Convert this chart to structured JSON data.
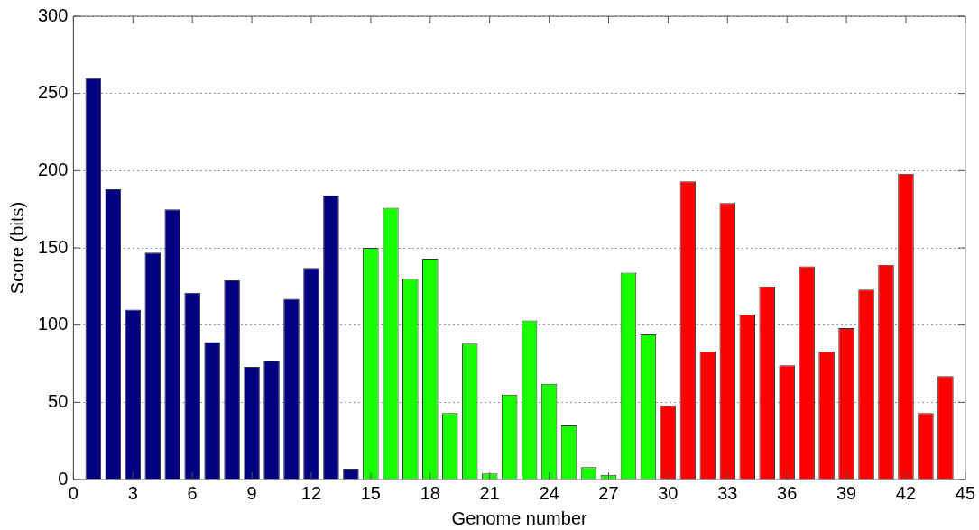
{
  "chart_data": {
    "type": "bar",
    "xlabel": "Genome number",
    "ylabel": "Score (bits)",
    "x": [
      1,
      2,
      3,
      4,
      5,
      6,
      7,
      8,
      9,
      10,
      11,
      12,
      13,
      14,
      15,
      16,
      17,
      18,
      19,
      20,
      21,
      22,
      23,
      24,
      25,
      26,
      27,
      28,
      29,
      30,
      31,
      32,
      33,
      34,
      35,
      36,
      37,
      38,
      39,
      40,
      41,
      42,
      43,
      44
    ],
    "values": [
      260,
      188,
      110,
      147,
      175,
      121,
      89,
      129,
      73,
      77,
      117,
      137,
      184,
      7,
      150,
      176,
      130,
      143,
      43,
      88,
      4,
      55,
      103,
      62,
      35,
      8,
      3,
      134,
      94,
      48,
      193,
      83,
      179,
      107,
      125,
      74,
      138,
      83,
      98,
      123,
      139,
      198,
      43,
      67
    ],
    "colors": [
      "#000080",
      "#000080",
      "#000080",
      "#000080",
      "#000080",
      "#000080",
      "#000080",
      "#000080",
      "#000080",
      "#000080",
      "#000080",
      "#000080",
      "#000080",
      "#000080",
      "#19ff00",
      "#19ff00",
      "#19ff00",
      "#19ff00",
      "#19ff00",
      "#19ff00",
      "#19ff00",
      "#19ff00",
      "#19ff00",
      "#19ff00",
      "#19ff00",
      "#19ff00",
      "#19ff00",
      "#19ff00",
      "#19ff00",
      "#ff0000",
      "#ff0000",
      "#ff0000",
      "#ff0000",
      "#ff0000",
      "#ff0000",
      "#ff0000",
      "#ff0000",
      "#ff0000",
      "#ff0000",
      "#ff0000",
      "#ff0000",
      "#ff0000",
      "#ff0000",
      "#ff0000"
    ],
    "xlim": [
      0,
      45
    ],
    "xticks": [
      0,
      3,
      6,
      9,
      12,
      15,
      18,
      21,
      24,
      27,
      30,
      33,
      36,
      39,
      42,
      45
    ],
    "ylim": [
      0,
      300
    ],
    "yticks": [
      0,
      50,
      100,
      150,
      200,
      250,
      300
    ],
    "grid": "y",
    "legend": false
  }
}
